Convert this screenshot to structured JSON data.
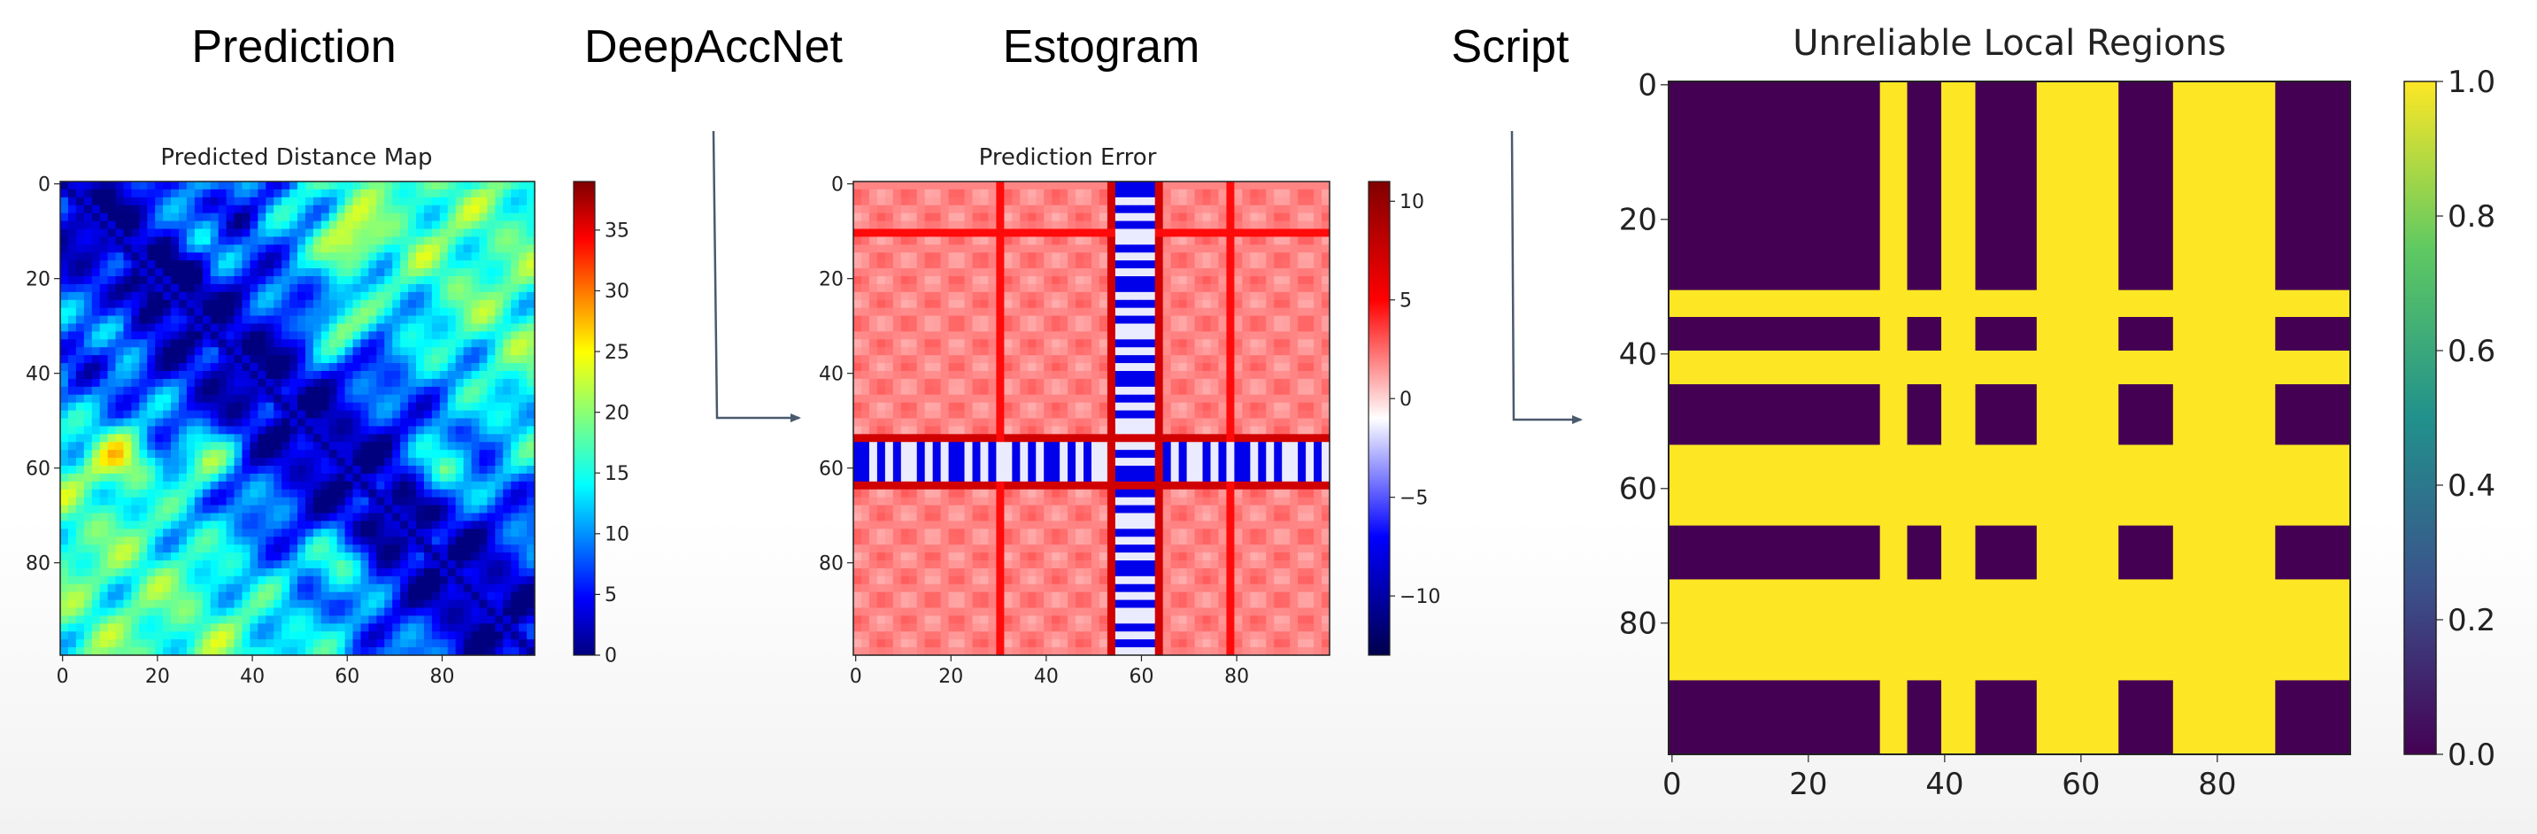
{
  "stages": {
    "prediction": "Prediction",
    "deepaccnet": "DeepAccNet",
    "estogram": "Estogram",
    "script": "Script"
  },
  "panels": {
    "distance": {
      "title": "Predicted Distance Map",
      "x_ticks": [
        "0",
        "20",
        "40",
        "60",
        "80"
      ],
      "y_ticks": [
        "0",
        "20",
        "40",
        "60",
        "80"
      ],
      "colorbar_ticks": [
        "0",
        "5",
        "10",
        "15",
        "20",
        "25",
        "30",
        "35"
      ],
      "colorbar_range": [
        0,
        39
      ],
      "colormap": "jet"
    },
    "error": {
      "title": "Prediction Error",
      "x_ticks": [
        "0",
        "20",
        "40",
        "60",
        "80"
      ],
      "y_ticks": [
        "0",
        "20",
        "40",
        "60",
        "80"
      ],
      "colorbar_ticks": [
        "10",
        "5",
        "0",
        "−5",
        "−10"
      ],
      "colorbar_range": [
        -13,
        11
      ],
      "colormap": "seismic"
    },
    "regions": {
      "title": "Unreliable Local Regions",
      "x_ticks": [
        "0",
        "20",
        "40",
        "60",
        "80"
      ],
      "y_ticks": [
        "0",
        "20",
        "40",
        "60",
        "80"
      ],
      "colorbar_ticks": [
        "1.0",
        "0.8",
        "0.6",
        "0.4",
        "0.2",
        "0.0"
      ],
      "colorbar_range": [
        0,
        1
      ],
      "colormap": "viridis",
      "unreliable_intervals": [
        [
          31,
          35
        ],
        [
          40,
          45
        ],
        [
          54,
          66
        ],
        [
          74,
          89
        ]
      ]
    }
  },
  "colors": {
    "dark_purple": "#440154",
    "yellow": "#fde725",
    "arrow": "#4a5a6e"
  }
}
